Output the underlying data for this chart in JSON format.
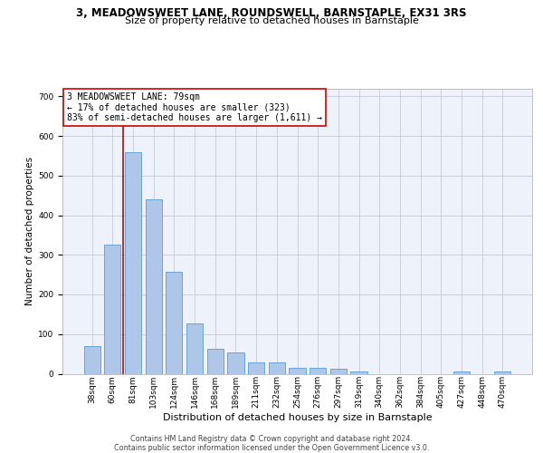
{
  "title1": "3, MEADOWSWEET LANE, ROUNDSWELL, BARNSTAPLE, EX31 3RS",
  "title2": "Size of property relative to detached houses in Barnstaple",
  "xlabel": "Distribution of detached houses by size in Barnstaple",
  "ylabel": "Number of detached properties",
  "categories": [
    "38sqm",
    "60sqm",
    "81sqm",
    "103sqm",
    "124sqm",
    "146sqm",
    "168sqm",
    "189sqm",
    "211sqm",
    "232sqm",
    "254sqm",
    "276sqm",
    "297sqm",
    "319sqm",
    "340sqm",
    "362sqm",
    "384sqm",
    "405sqm",
    "427sqm",
    "448sqm",
    "470sqm"
  ],
  "values": [
    70,
    325,
    560,
    440,
    258,
    128,
    63,
    53,
    28,
    28,
    16,
    16,
    12,
    5,
    0,
    0,
    0,
    0,
    5,
    0,
    5
  ],
  "bar_color": "#aec6e8",
  "bar_edge_color": "#5b9bd5",
  "annotation_line1": "3 MEADOWSWEET LANE: 79sqm",
  "annotation_line2": "← 17% of detached houses are smaller (323)",
  "annotation_line3": "83% of semi-detached houses are larger (1,611) →",
  "vline_color": "#cc0000",
  "annotation_box_edgecolor": "#cc0000",
  "background_color": "#eef2fb",
  "grid_color": "#c8c8d8",
  "footer": "Contains HM Land Registry data © Crown copyright and database right 2024.\nContains public sector information licensed under the Open Government Licence v3.0.",
  "ylim_max": 720,
  "yticks": [
    0,
    100,
    200,
    300,
    400,
    500,
    600,
    700
  ],
  "vline_pos": 1.5,
  "title1_fontsize": 8.5,
  "title2_fontsize": 8.0,
  "ylabel_fontsize": 7.5,
  "xlabel_fontsize": 8.0,
  "tick_fontsize": 6.5,
  "annotation_fontsize": 7.0,
  "footer_fontsize": 5.8
}
